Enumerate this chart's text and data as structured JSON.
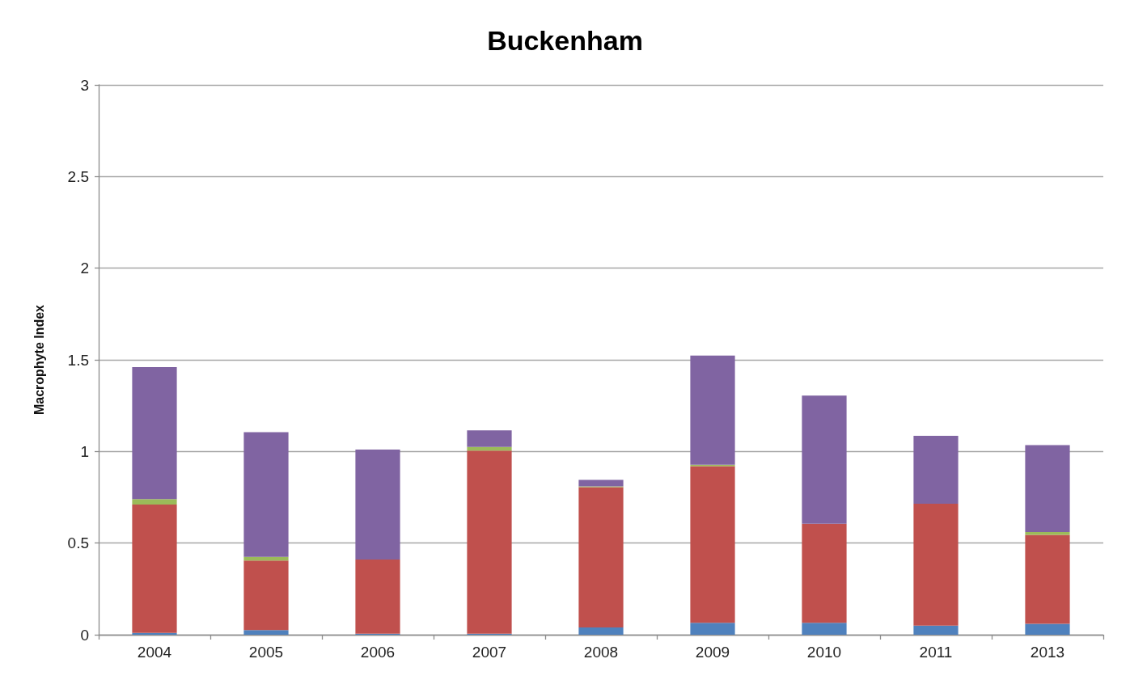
{
  "chart_data": {
    "type": "bar",
    "title": "Buckenham",
    "ylabel": "Macrophyte Index",
    "categories": [
      "2004",
      "2005",
      "2006",
      "2007",
      "2008",
      "2009",
      "2010",
      "2011",
      "2013"
    ],
    "series": [
      {
        "color": "#4f81bd",
        "values": [
          0.01,
          0.025,
          0.005,
          0.005,
          0.04,
          0.065,
          0.065,
          0.05,
          0.06
        ]
      },
      {
        "color": "#c0504d",
        "values": [
          0.7,
          0.38,
          0.405,
          1.0,
          0.765,
          0.855,
          0.54,
          0.665,
          0.485
        ]
      },
      {
        "color": "#9bbb59",
        "values": [
          0.03,
          0.02,
          null,
          0.02,
          0.005,
          0.008,
          null,
          null,
          0.015
        ]
      },
      {
        "color": "#8064a2",
        "values": [
          0.72,
          0.68,
          0.6,
          0.09,
          0.035,
          0.595,
          0.7,
          0.37,
          0.475
        ]
      }
    ],
    "stacked": true,
    "ylim": [
      0,
      3
    ],
    "yticks": [
      0,
      0.5,
      1,
      1.5,
      2,
      2.5,
      3
    ],
    "grid": "y"
  }
}
